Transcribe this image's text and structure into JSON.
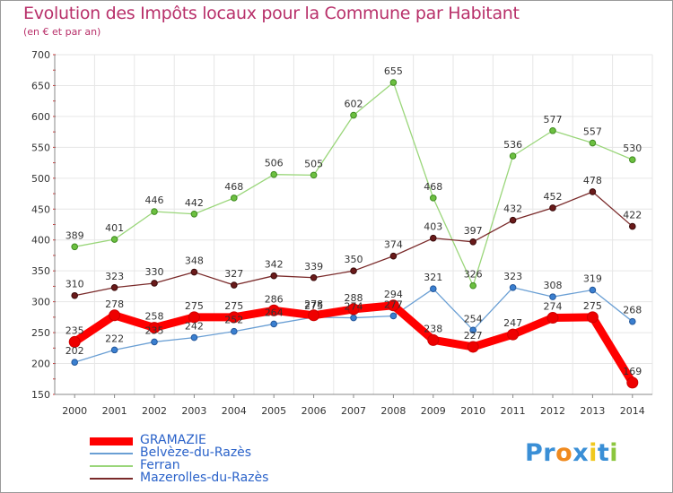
{
  "title": "Evolution des Impôts locaux pour la Commune par Habitant",
  "subtitle": "(en € et par an)",
  "logo": {
    "text": "Proxiti",
    "letters": [
      "P",
      "r",
      "o",
      "x",
      "i",
      "t",
      "i"
    ],
    "colors": [
      "#3a8fd6",
      "#3a8fd6",
      "#f08a1e",
      "#3a8fd6",
      "#f0c81e",
      "#3a8fd6",
      "#8cc63e"
    ]
  },
  "chart_data": {
    "type": "line",
    "title": "Evolution des Impôts locaux pour la Commune par Habitant",
    "subtitle": "(en € et par an)",
    "x": [
      "2000",
      "2001",
      "2002",
      "2003",
      "2004",
      "2005",
      "2006",
      "2007",
      "2008",
      "2009",
      "2010",
      "2011",
      "2012",
      "2013",
      "2014"
    ],
    "ylim": [
      150,
      700
    ],
    "yticks": [
      "150",
      "200",
      "250",
      "300",
      "350",
      "400",
      "450",
      "500",
      "550",
      "600",
      "650",
      "700"
    ],
    "grid": true,
    "legend_position": "bottom-left",
    "series": [
      {
        "name": "GRAMAZIE",
        "color": "#ff0000",
        "values": [
          235,
          278,
          258,
          275,
          275,
          286,
          278,
          288,
          294,
          238,
          227,
          247,
          274,
          275,
          169
        ],
        "labels": [
          "235",
          "278",
          "258",
          "275",
          "275",
          "286",
          "278",
          "288",
          "294",
          "238",
          "227",
          "247",
          "274",
          "275",
          "169"
        ]
      },
      {
        "name": "Belvèze-du-Razès",
        "color": "#6a9fd4",
        "values": [
          202,
          222,
          235,
          242,
          252,
          264,
          275,
          274,
          277,
          321,
          254,
          323,
          308,
          319,
          268
        ],
        "labels": [
          "202",
          "222",
          "235",
          "242",
          "252",
          "264",
          "275",
          "274",
          "277",
          "321",
          "254",
          "323",
          "308",
          "319",
          "268"
        ]
      },
      {
        "name": "Ferran",
        "color": "#9ad67a",
        "values": [
          389,
          401,
          446,
          442,
          468,
          506,
          505,
          602,
          655,
          468,
          326,
          536,
          577,
          557,
          530
        ],
        "labels": [
          "389",
          "401",
          "446",
          "442",
          "468",
          "506",
          "505",
          "602",
          "655",
          "468",
          "326",
          "536",
          "577",
          "557",
          "530"
        ]
      },
      {
        "name": "Mazerolles-du-Razès",
        "color": "#7a2a2a",
        "values": [
          310,
          323,
          330,
          348,
          327,
          342,
          339,
          350,
          374,
          403,
          397,
          432,
          452,
          478,
          422
        ],
        "labels": [
          "310",
          "323",
          "330",
          "348",
          "327",
          "342",
          "339",
          "350",
          "374",
          "403",
          "397",
          "432",
          "452",
          "478",
          "422"
        ]
      }
    ]
  }
}
